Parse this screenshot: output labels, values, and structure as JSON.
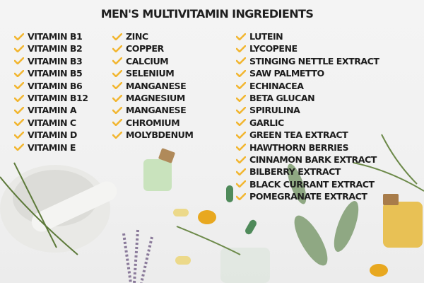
{
  "title": "MEN'S MULTIVITAMIN INGREDIENTS",
  "check_icon": "checkmark-icon",
  "colors": {
    "check": "#f2b630",
    "text": "#1d1d1d",
    "background": "#f2f2f2"
  },
  "columns": [
    [
      "VITAMIN B1",
      "VITAMIN B2",
      "VITAMIN B3",
      "VITAMIN B5",
      "VITAMIN B6",
      "VITAMIN B12",
      "VITAMIN A",
      "VITAMIN C",
      "VITAMIN D",
      "VITAMIN E"
    ],
    [
      "ZINC",
      "COPPER",
      "CALCIUM",
      "SELENIUM",
      "MANGANESE",
      "MAGNESIUM",
      "MANGANESE",
      "CHROMIUM",
      "MOLYBDENUM"
    ],
    [
      "LUTEIN",
      "LYCOPENE",
      "STINGING NETTLE EXTRACT",
      "SAW PALMETTO",
      "ECHINACEA",
      "BETA GLUCAN",
      "SPIRULINA",
      "GARLIC",
      "GREEN TEA EXTRACT",
      "HAWTHORN BERRIES",
      "CINNAMON BARK EXTRACT",
      "BILBERRY EXTRACT",
      "BLACK CURRANT EXTRACT",
      "POMEGRANATE EXTRACT"
    ]
  ]
}
